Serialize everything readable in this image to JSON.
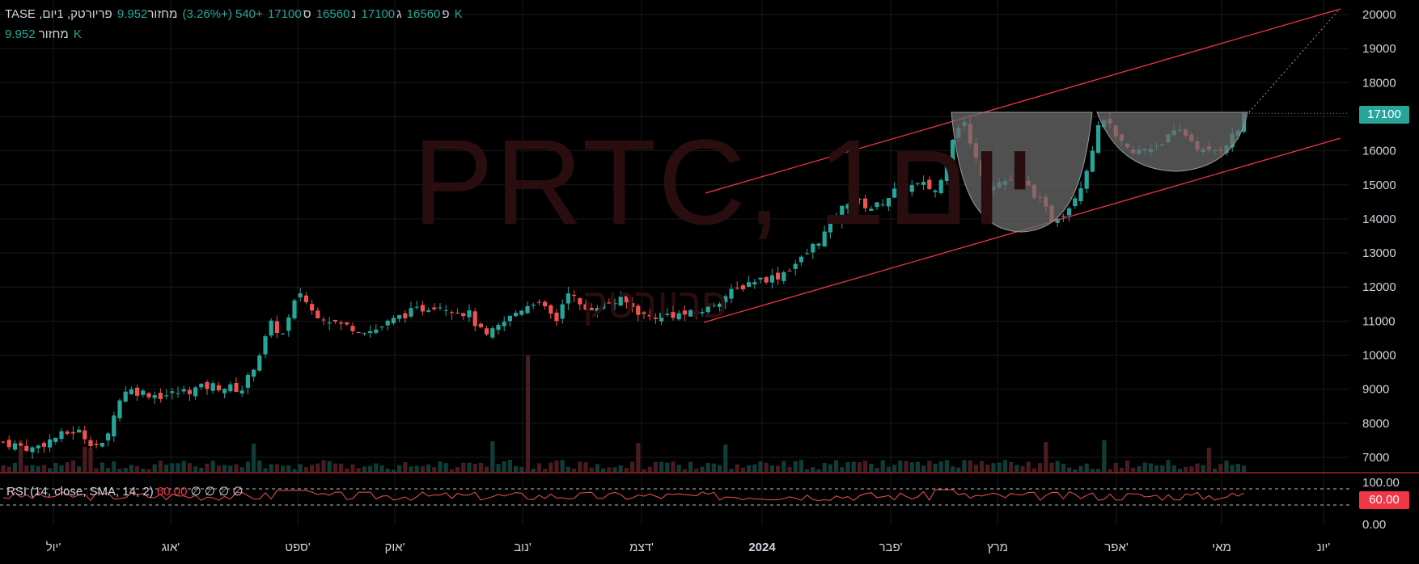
{
  "legend": {
    "symbol_title": "פריורטק, 1יום, TASE",
    "open_label": "פ",
    "open": "16560",
    "high_label": "ג",
    "high": "17100",
    "low_label": "נ",
    "low": "16560",
    "close_label": "ס",
    "close": "17100",
    "change": "+540 (+3.26%)",
    "volume_label": "מחזור",
    "volume": "9.952 K",
    "volume_row_label": "מחזור",
    "volume_row_value": "9.952 K"
  },
  "rsi_legend": {
    "title": "RSI (14, close, SMA, 14, 2)",
    "value": "60.00",
    "extras": "∅ ∅ ∅ ∅"
  },
  "watermark": {
    "main": "PRTC, 1יום",
    "sub": "פריורטק"
  },
  "current_price_tag": "17100",
  "rsi_tag": "60.00",
  "colors": {
    "up": "#26a69a",
    "down": "#ef5350",
    "channel": "#f23645",
    "cup_fill": "#6b6b6b",
    "background": "#000000",
    "grid": "#1a1a1a"
  },
  "chart_data": [
    {
      "type": "candlestick",
      "title": "פריורטק, 1יום, TASE",
      "y_axis_ticks": [
        "20000",
        "19000",
        "18000",
        "17000",
        "16000",
        "15000",
        "14000",
        "13000",
        "12000",
        "11000",
        "10000",
        "9000",
        "8000",
        "7000"
      ],
      "ylim": [
        6600,
        20300
      ],
      "x_axis_ticks": [
        "יול'",
        "אוג'",
        "ספט'",
        "אוק'",
        "נוב'",
        "דצמ'",
        "2024",
        "פבר'",
        "מרץ",
        "אפר'",
        "מאי",
        "יונ'"
      ],
      "last_close": 17100,
      "key_points": [
        {
          "date": "יול'",
          "close": 7400
        },
        {
          "date": "אוג'",
          "close": 8900
        },
        {
          "date": "ספט'",
          "close": 11900
        },
        {
          "date": "אוק'",
          "close": 10700
        },
        {
          "date": "נוב'",
          "close": 11000
        },
        {
          "date": "דצמ'",
          "close": 11700
        },
        {
          "date": "2024",
          "close": 12300
        },
        {
          "date": "פבר'",
          "close": 15400
        },
        {
          "date": "מרץ",
          "close": 15000
        },
        {
          "date": "אפר'",
          "close": 16500
        },
        {
          "date": "מאי",
          "close": 16200
        },
        {
          "date": "last",
          "close": 17100
        }
      ],
      "annotations": [
        "ascending channel",
        "cup and handle",
        "projection to 20000"
      ]
    },
    {
      "type": "line",
      "title": "RSI (14, close, SMA, 14, 2)",
      "y_axis_ticks": [
        "100.00",
        "0.00"
      ],
      "bands": [
        70,
        30
      ],
      "last_value": 60.0
    }
  ]
}
